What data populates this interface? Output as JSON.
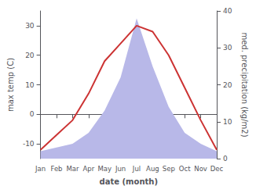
{
  "chart_data": {
    "type": "line",
    "categories": [
      "Jan",
      "Feb",
      "Mar",
      "Apr",
      "May",
      "Jun",
      "Jul",
      "Aug",
      "Sep",
      "Oct",
      "Nov",
      "Dec"
    ],
    "xlabel": "date (month)",
    "ylabel": "max temp (C)",
    "y2label": "med. precipitation (kg/m2)",
    "ylim": [
      -15,
      35
    ],
    "yticks": [
      -10,
      0,
      10,
      20,
      30
    ],
    "y2lim": [
      0,
      40
    ],
    "y2ticks": [
      0,
      10,
      20,
      30,
      40
    ],
    "grid": false,
    "series": [
      {
        "type": "area",
        "axis": "y2",
        "color": "#b8b8e8",
        "values": [
          2,
          3,
          4,
          7,
          13,
          22,
          38,
          25,
          14,
          7,
          4,
          2
        ]
      },
      {
        "type": "line",
        "color": "#cc3333",
        "values": [
          -12,
          -7,
          -2,
          7,
          18,
          24,
          30,
          28,
          20,
          9,
          -2,
          -12
        ]
      }
    ]
  }
}
